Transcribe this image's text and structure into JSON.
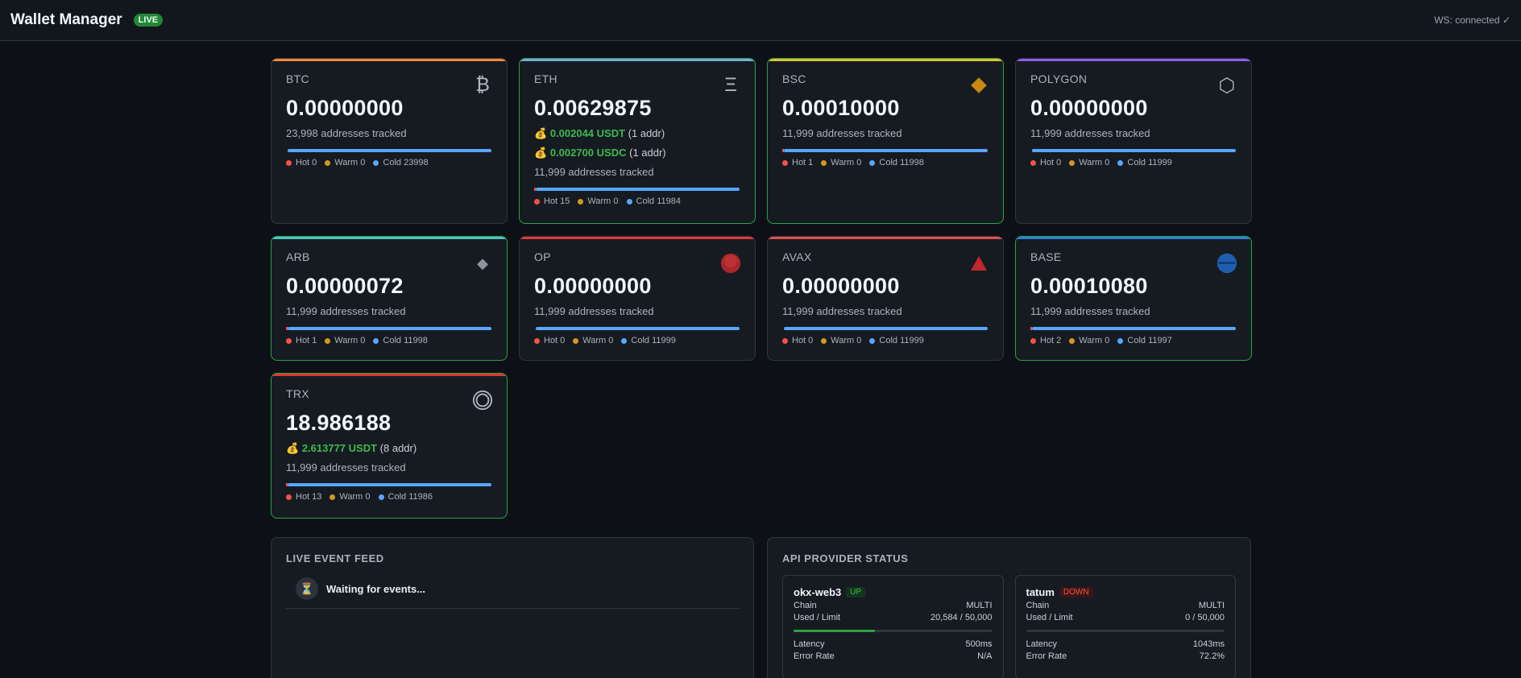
{
  "header": {
    "title": "Wallet Manager",
    "live_badge": "LIVE",
    "ws_status": "WS: connected ✓"
  },
  "colors": {
    "hot": "#f85149",
    "warm": "#d29922",
    "cold": "#58a6ff",
    "success": "#3fb950"
  },
  "cards": [
    {
      "chain": "BTC",
      "amount": "0.00000000",
      "icon": "bitcoin-icon",
      "icon_glyph": "₿",
      "accent": "#f0883e",
      "has_balance": false,
      "tokens": [],
      "tracked": "23,998 addresses tracked",
      "hot": "Hot 0",
      "warm": "Warm 0",
      "cold": "Cold 23998",
      "hot_fraction": 0
    },
    {
      "chain": "ETH",
      "amount": "0.00629875",
      "icon": "ethereum-icon",
      "icon_glyph": "Ξ",
      "accent": "#79a9e0",
      "has_balance": true,
      "tokens": [
        {
          "bag": "💰",
          "value": "0.002044 USDT",
          "addr": "(1 addr)"
        },
        {
          "bag": "💰",
          "value": "0.002700 USDC",
          "addr": "(1 addr)"
        }
      ],
      "tracked": "11,999 addresses tracked",
      "hot": "Hot 15",
      "warm": "Warm 0",
      "cold": "Cold 11984",
      "hot_fraction": 0.00125
    },
    {
      "chain": "BSC",
      "amount": "0.00010000",
      "icon": "bnb-diamond-icon",
      "icon_glyph": "",
      "accent": "#e3c12b",
      "has_balance": true,
      "tokens": [],
      "tracked": "11,999 addresses tracked",
      "hot": "Hot 1",
      "warm": "Warm 0",
      "cold": "Cold 11998",
      "hot_fraction": 0.0001
    },
    {
      "chain": "POLYGON",
      "amount": "0.00000000",
      "icon": "hexagon-icon",
      "icon_glyph": "⬡",
      "accent": "#8c5cf0",
      "has_balance": false,
      "tokens": [],
      "tracked": "11,999 addresses tracked",
      "hot": "Hot 0",
      "warm": "Warm 0",
      "cold": "Cold 11999",
      "hot_fraction": 0
    },
    {
      "chain": "ARB",
      "amount": "0.00000072",
      "icon": "arbitrum-diamond-icon",
      "icon_glyph": "◆",
      "accent": "#4fc1c4",
      "has_balance": true,
      "tokens": [],
      "tracked": "11,999 addresses tracked",
      "hot": "Hot 1",
      "warm": "Warm 0",
      "cold": "Cold 11998",
      "hot_fraction": 0.0001
    },
    {
      "chain": "OP",
      "amount": "0.00000000",
      "icon": "optimism-circle-icon",
      "icon_glyph": "",
      "accent": "#e0383d",
      "has_balance": false,
      "tokens": [],
      "tracked": "11,999 addresses tracked",
      "hot": "Hot 0",
      "warm": "Warm 0",
      "cold": "Cold 11999",
      "hot_fraction": 0
    },
    {
      "chain": "AVAX",
      "amount": "0.00000000",
      "icon": "avalanche-triangle-icon",
      "icon_glyph": "▲",
      "accent": "#e05050",
      "has_balance": false,
      "tokens": [],
      "tracked": "11,999 addresses tracked",
      "hot": "Hot 0",
      "warm": "Warm 0",
      "cold": "Cold 11999",
      "hot_fraction": 0
    },
    {
      "chain": "BASE",
      "amount": "0.00010080",
      "icon": "base-circle-icon",
      "icon_glyph": "",
      "accent": "#2f7fd8",
      "has_balance": true,
      "tokens": [],
      "tracked": "11,999 addresses tracked",
      "hot": "Hot 2",
      "warm": "Warm 0",
      "cold": "Cold 11997",
      "hot_fraction": 0.0002
    },
    {
      "chain": "TRX",
      "amount": "18.986188",
      "icon": "tron-ring-icon",
      "icon_glyph": "◎",
      "accent": "#e0382d",
      "has_balance": true,
      "tokens": [
        {
          "bag": "💰",
          "value": "2.613777 USDT",
          "addr": "(8 addr)"
        }
      ],
      "tracked": "11,999 addresses tracked",
      "hot": "Hot 13",
      "warm": "Warm 0",
      "cold": "Cold 11986",
      "hot_fraction": 0.0011
    }
  ],
  "feed": {
    "title": "LIVE EVENT FEED",
    "waiting": "Waiting for events..."
  },
  "providers": {
    "title": "API PROVIDER STATUS",
    "items": [
      {
        "name": "okx-web3",
        "status": "UP",
        "chain_label": "Chain",
        "chain": "MULTI",
        "used_label": "Used / Limit",
        "used": "20,584 / 50,000",
        "used_fraction": 0.4117,
        "latency_label": "Latency",
        "latency": "500ms",
        "error_label": "Error Rate",
        "error": "N/A"
      },
      {
        "name": "tatum",
        "status": "DOWN",
        "chain_label": "Chain",
        "chain": "MULTI",
        "used_label": "Used / Limit",
        "used": "0 / 50,000",
        "used_fraction": 0,
        "latency_label": "Latency",
        "latency": "1043ms",
        "error_label": "Error Rate",
        "error": "72.2%"
      }
    ]
  }
}
